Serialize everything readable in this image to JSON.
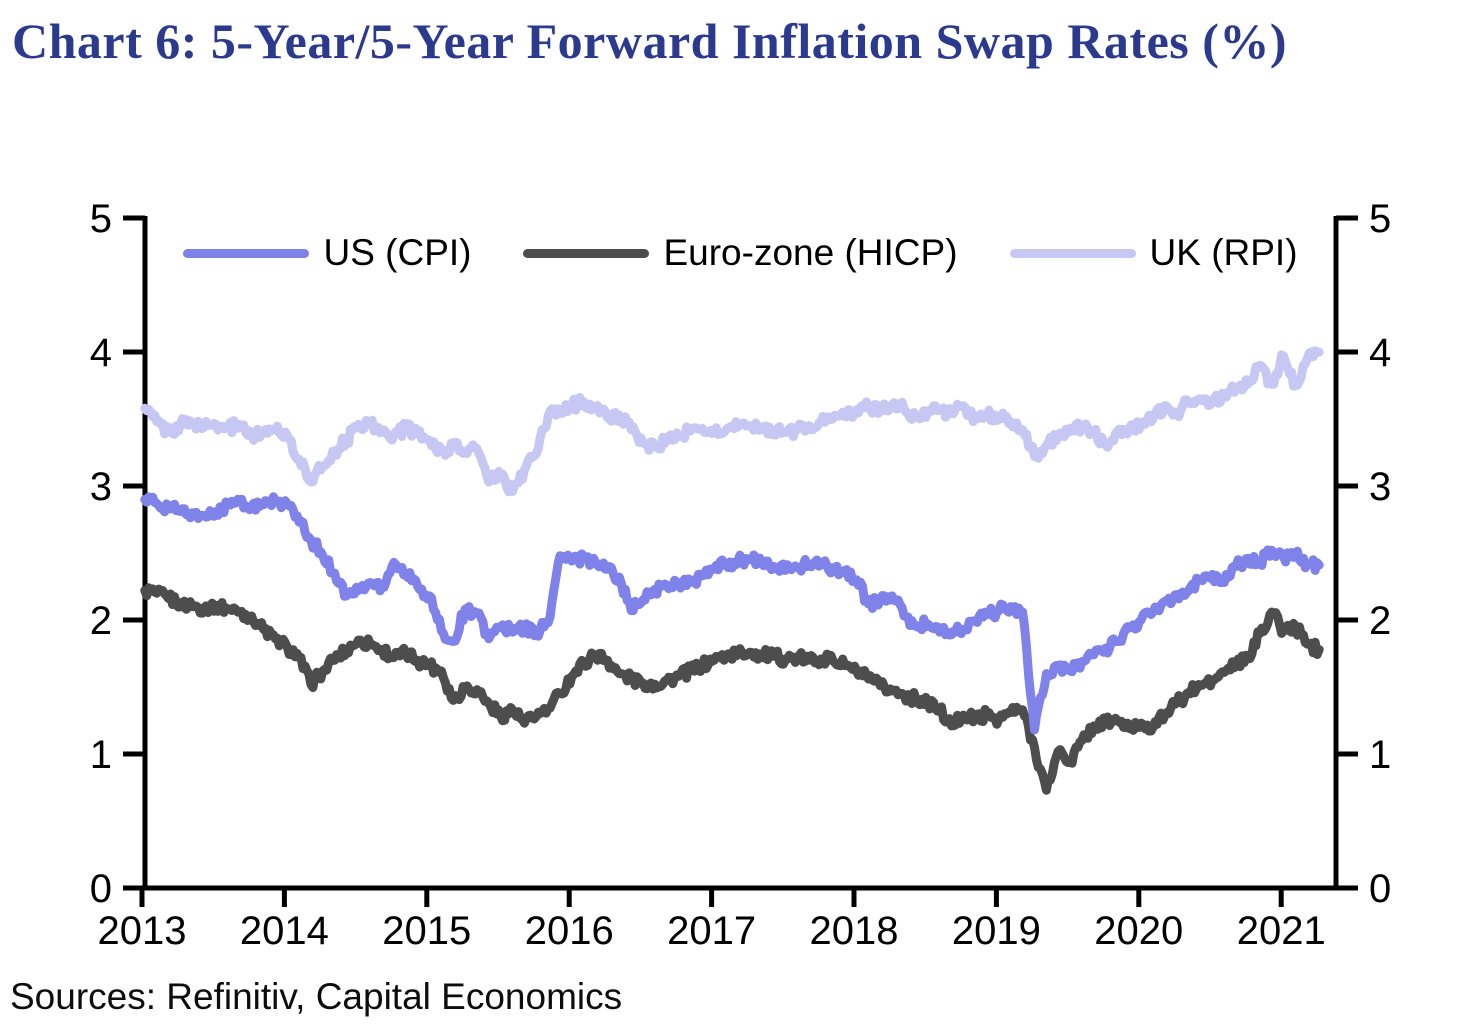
{
  "title": "Chart 6: 5-Year/5-Year Forward Inflation Swap Rates (%)",
  "source_note": "Sources: Refinitiv, Capital Economics",
  "colors": {
    "title_blue": "#2b3a8e",
    "axis_black": "#000000",
    "us_line": "#7f82e9",
    "eurozone_line": "#4d4d4d",
    "uk_line": "#c6c8f3"
  },
  "chart_data": {
    "type": "line",
    "title": "Chart 6: 5-Year/5-Year Forward Inflation Swap Rates (%)",
    "xlabel": "",
    "ylabel": "",
    "ylim": [
      0,
      5
    ],
    "y_ticks": [
      "0",
      "1",
      "2",
      "3",
      "4",
      "5"
    ],
    "x_tick_labels": [
      "2013",
      "2014",
      "2015",
      "2016",
      "2017",
      "2018",
      "2019",
      "2020",
      "2021"
    ],
    "x_range_years": [
      2013.0,
      2021.4
    ],
    "grid": false,
    "legend_position": "top-center",
    "dual_y_axis": true,
    "x_start_offset_years": 0.02,
    "x_step_years": 0.0833,
    "series": [
      {
        "name": "US (CPI)",
        "color": "#7f82e9",
        "values": [
          2.9,
          2.87,
          2.84,
          2.81,
          2.8,
          2.78,
          2.81,
          2.86,
          2.88,
          2.83,
          2.86,
          2.89,
          2.87,
          2.73,
          2.6,
          2.48,
          2.35,
          2.18,
          2.22,
          2.28,
          2.25,
          2.43,
          2.35,
          2.25,
          2.18,
          1.92,
          1.84,
          2.08,
          2.05,
          1.86,
          1.95,
          1.91,
          1.94,
          1.9,
          1.98,
          2.48,
          2.44,
          2.46,
          2.43,
          2.38,
          2.32,
          2.07,
          2.15,
          2.23,
          2.26,
          2.28,
          2.28,
          2.33,
          2.38,
          2.42,
          2.44,
          2.45,
          2.43,
          2.4,
          2.37,
          2.39,
          2.42,
          2.41,
          2.39,
          2.37,
          2.3,
          2.12,
          2.15,
          2.18,
          2.03,
          1.96,
          1.97,
          1.91,
          1.89,
          1.93,
          1.99,
          2.04,
          2.07,
          2.1,
          2.06,
          1.18,
          1.6,
          1.66,
          1.62,
          1.69,
          1.74,
          1.79,
          1.84,
          1.94,
          2.0,
          2.06,
          2.14,
          2.19,
          2.22,
          2.3,
          2.34,
          2.28,
          2.4,
          2.46,
          2.43,
          2.52,
          2.47,
          2.5,
          2.42,
          2.41
        ]
      },
      {
        "name": "Euro-zone (HICP)",
        "color": "#4d4d4d",
        "values": [
          2.22,
          2.2,
          2.16,
          2.13,
          2.1,
          2.09,
          2.11,
          2.08,
          2.06,
          2.03,
          1.93,
          1.86,
          1.8,
          1.72,
          1.52,
          1.62,
          1.7,
          1.78,
          1.85,
          1.82,
          1.78,
          1.72,
          1.75,
          1.7,
          1.66,
          1.62,
          1.4,
          1.5,
          1.48,
          1.38,
          1.28,
          1.33,
          1.23,
          1.28,
          1.34,
          1.45,
          1.58,
          1.68,
          1.74,
          1.7,
          1.6,
          1.56,
          1.53,
          1.52,
          1.55,
          1.58,
          1.62,
          1.66,
          1.7,
          1.73,
          1.75,
          1.76,
          1.74,
          1.73,
          1.71,
          1.72,
          1.7,
          1.71,
          1.7,
          1.66,
          1.62,
          1.56,
          1.51,
          1.47,
          1.44,
          1.41,
          1.39,
          1.33,
          1.21,
          1.29,
          1.26,
          1.3,
          1.26,
          1.31,
          1.33,
          1.05,
          0.73,
          1.02,
          0.94,
          1.1,
          1.21,
          1.24,
          1.25,
          1.19,
          1.23,
          1.2,
          1.29,
          1.38,
          1.46,
          1.51,
          1.55,
          1.61,
          1.68,
          1.71,
          1.9,
          2.06,
          1.92,
          1.95,
          1.82,
          1.78
        ]
      },
      {
        "name": "UK (RPI)",
        "color": "#c6c8f3",
        "values": [
          3.58,
          3.48,
          3.4,
          3.46,
          3.47,
          3.44,
          3.46,
          3.43,
          3.46,
          3.38,
          3.41,
          3.43,
          3.38,
          3.2,
          3.03,
          3.15,
          3.26,
          3.34,
          3.46,
          3.47,
          3.4,
          3.38,
          3.43,
          3.39,
          3.34,
          3.26,
          3.3,
          3.25,
          3.28,
          3.03,
          3.08,
          2.96,
          3.12,
          3.24,
          3.52,
          3.57,
          3.6,
          3.63,
          3.58,
          3.51,
          3.53,
          3.42,
          3.32,
          3.29,
          3.34,
          3.37,
          3.41,
          3.43,
          3.4,
          3.42,
          3.44,
          3.45,
          3.44,
          3.41,
          3.4,
          3.42,
          3.45,
          3.48,
          3.5,
          3.52,
          3.57,
          3.59,
          3.58,
          3.6,
          3.58,
          3.52,
          3.55,
          3.57,
          3.54,
          3.6,
          3.51,
          3.53,
          3.52,
          3.48,
          3.42,
          3.22,
          3.3,
          3.38,
          3.43,
          3.45,
          3.4,
          3.31,
          3.41,
          3.43,
          3.46,
          3.5,
          3.6,
          3.55,
          3.62,
          3.65,
          3.63,
          3.68,
          3.72,
          3.76,
          3.9,
          3.76,
          3.97,
          3.75,
          3.95,
          4.0
        ]
      }
    ]
  }
}
